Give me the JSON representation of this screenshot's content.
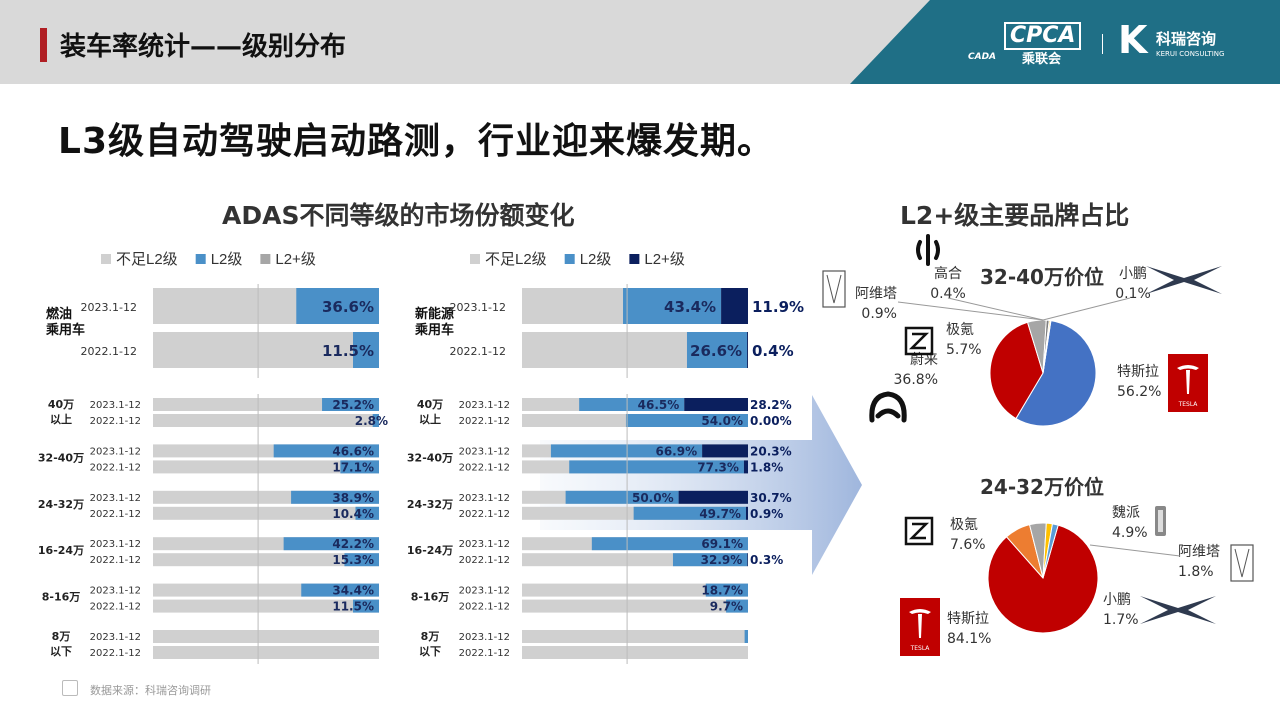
{
  "header": {
    "title": "装车率统计——级别分布",
    "logo_cpca": "CPCA",
    "logo_cpca_cn": "乘联会",
    "logo_cpca_mark": "CADA",
    "logo_kerui_cn": "科瑞咨询",
    "logo_kerui_en": "KERUI CONSULTING"
  },
  "headline": "L3级自动驾驶启动路测，行业迎来爆发期。",
  "adas_title": "ADAS不同等级的市场份额变化",
  "brand_title": "L2+级主要品牌占比",
  "source": "数据来源：科瑞咨询调研",
  "colors": {
    "below_l2": "#d0d0d0",
    "l2": "#4a90c8",
    "l2plus_fuel": "#a6a6a6",
    "l2plus_nev": "#0b1f5e",
    "pie_tesla": "#c00000",
    "pie_nio": "#c00000",
    "pie_tesla_top": "#4472c4",
    "pie_zeekr": "#999999",
    "pie_orange": "#ed7d31"
  },
  "chart_data": [
    {
      "type": "bar",
      "name": "fuel",
      "legend": [
        "不足L2级",
        "L2级",
        "L2+级"
      ],
      "top_groups": [
        {
          "label": "燃油\n乘用车",
          "rows": [
            {
              "period": "2023.1-12",
              "l2": 36.6,
              "l2plus": 0,
              "label": "36.6%"
            },
            {
              "period": "2022.1-12",
              "l2": 11.5,
              "l2plus": 0,
              "label": "11.5%"
            }
          ]
        }
      ],
      "groups": [
        {
          "label": "40万\n以上",
          "rows": [
            {
              "period": "2023.1-12",
              "l2": 25.2,
              "l2plus": 0,
              "label": "25.2%"
            },
            {
              "period": "2022.1-12",
              "l2": 2.8,
              "l2plus": 0,
              "label": "2.8%"
            }
          ]
        },
        {
          "label": "32-40万",
          "rows": [
            {
              "period": "2023.1-12",
              "l2": 46.6,
              "l2plus": 0,
              "label": "46.6%"
            },
            {
              "period": "2022.1-12",
              "l2": 17.1,
              "l2plus": 0,
              "label": "17.1%"
            }
          ]
        },
        {
          "label": "24-32万",
          "rows": [
            {
              "period": "2023.1-12",
              "l2": 38.9,
              "l2plus": 0,
              "label": "38.9%"
            },
            {
              "period": "2022.1-12",
              "l2": 10.4,
              "l2plus": 0,
              "label": "10.4%"
            }
          ]
        },
        {
          "label": "16-24万",
          "rows": [
            {
              "period": "2023.1-12",
              "l2": 42.2,
              "l2plus": 0,
              "label": "42.2%"
            },
            {
              "period": "2022.1-12",
              "l2": 15.3,
              "l2plus": 0,
              "label": "15.3%"
            }
          ]
        },
        {
          "label": "8-16万",
          "rows": [
            {
              "period": "2023.1-12",
              "l2": 34.4,
              "l2plus": 0,
              "label": "34.4%"
            },
            {
              "period": "2022.1-12",
              "l2": 11.5,
              "l2plus": 0,
              "label": "11.5%"
            }
          ]
        },
        {
          "label": "8万\n以下",
          "rows": [
            {
              "period": "2023.1-12",
              "l2": 0,
              "l2plus": 0,
              "label": ""
            },
            {
              "period": "2022.1-12",
              "l2": 0,
              "l2plus": 0,
              "label": ""
            }
          ]
        }
      ]
    },
    {
      "type": "bar",
      "name": "nev",
      "legend": [
        "不足L2级",
        "L2级",
        "L2+级"
      ],
      "top_groups": [
        {
          "label": "新能源\n乘用车",
          "rows": [
            {
              "period": "2023.1-12",
              "l2": 43.4,
              "l2plus": 11.9,
              "label": "43.4%",
              "label2": "11.9%"
            },
            {
              "period": "2022.1-12",
              "l2": 26.6,
              "l2plus": 0.4,
              "label": "26.6%",
              "label2": "0.4%"
            }
          ]
        }
      ],
      "groups": [
        {
          "label": "40万\n以上",
          "rows": [
            {
              "period": "2023.1-12",
              "l2": 46.5,
              "l2plus": 28.2,
              "label": "46.5%",
              "label2": "28.2%"
            },
            {
              "period": "2022.1-12",
              "l2": 54.0,
              "l2plus": 0,
              "label": "54.0%",
              "label2": "0.00%"
            }
          ]
        },
        {
          "label": "32-40万",
          "rows": [
            {
              "period": "2023.1-12",
              "l2": 66.9,
              "l2plus": 20.3,
              "label": "66.9%",
              "label2": "20.3%"
            },
            {
              "period": "2022.1-12",
              "l2": 77.3,
              "l2plus": 1.8,
              "label": "77.3%",
              "label2": "1.8%"
            }
          ]
        },
        {
          "label": "24-32万",
          "rows": [
            {
              "period": "2023.1-12",
              "l2": 50.0,
              "l2plus": 30.7,
              "label": "50.0%",
              "label2": "30.7%"
            },
            {
              "period": "2022.1-12",
              "l2": 49.7,
              "l2plus": 0.9,
              "label": "49.7%",
              "label2": "0.9%"
            }
          ]
        },
        {
          "label": "16-24万",
          "rows": [
            {
              "period": "2023.1-12",
              "l2": 69.1,
              "l2plus": 0,
              "label": "69.1%",
              "label2": ""
            },
            {
              "period": "2022.1-12",
              "l2": 32.9,
              "l2plus": 0.3,
              "label": "32.9%",
              "label2": "0.3%"
            }
          ]
        },
        {
          "label": "8-16万",
          "rows": [
            {
              "period": "2023.1-12",
              "l2": 18.7,
              "l2plus": 0,
              "label": "18.7%",
              "label2": ""
            },
            {
              "period": "2022.1-12",
              "l2": 9.7,
              "l2plus": 0,
              "label": "9.7%",
              "label2": ""
            }
          ]
        },
        {
          "label": "8万\n以下",
          "rows": [
            {
              "period": "2023.1-12",
              "l2": 1.5,
              "l2plus": 0,
              "label": "",
              "label2": ""
            },
            {
              "period": "2022.1-12",
              "l2": 0,
              "l2plus": 0,
              "label": "",
              "label2": ""
            }
          ]
        }
      ]
    },
    {
      "type": "pie",
      "title": "32-40万价位",
      "slices": [
        {
          "name": "特斯拉",
          "value": 56.2,
          "label": "56.2%",
          "color": "#4472c4"
        },
        {
          "name": "蔚来",
          "value": 36.8,
          "label": "36.8%",
          "color": "#c00000"
        },
        {
          "name": "极氪",
          "value": 5.7,
          "label": "5.7%",
          "color": "#a6a6a6"
        },
        {
          "name": "阿维塔",
          "value": 0.9,
          "label": "0.9%",
          "color": "#7f7f7f"
        },
        {
          "name": "高合",
          "value": 0.4,
          "label": "0.4%",
          "color": "#ffc000"
        },
        {
          "name": "小鹏",
          "value": 0.1,
          "label": "0.1%",
          "color": "#5b9bd5"
        }
      ]
    },
    {
      "type": "pie",
      "title": "24-32万价位",
      "slices": [
        {
          "name": "特斯拉",
          "value": 84.1,
          "label": "84.1%",
          "color": "#c00000"
        },
        {
          "name": "极氪",
          "value": 7.6,
          "label": "7.6%",
          "color": "#ed7d31"
        },
        {
          "name": "魏派",
          "value": 4.9,
          "label": "4.9%",
          "color": "#a6a6a6"
        },
        {
          "name": "阿维塔",
          "value": 1.8,
          "label": "1.8%",
          "color": "#ffc000"
        },
        {
          "name": "小鹏",
          "value": 1.7,
          "label": "1.7%",
          "color": "#5b9bd5"
        }
      ]
    }
  ]
}
